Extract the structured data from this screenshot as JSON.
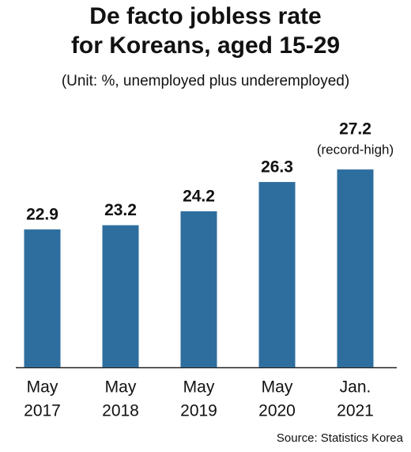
{
  "chart_data": {
    "type": "bar",
    "title": [
      "De facto jobless rate",
      "for Koreans, aged 15-29"
    ],
    "subtitle": "(Unit: %, unemployed plus underemployed)",
    "categories": [
      [
        "May",
        "2017"
      ],
      [
        "May",
        "2018"
      ],
      [
        "May",
        "2019"
      ],
      [
        "May",
        "2020"
      ],
      [
        "Jan.",
        "2021"
      ]
    ],
    "values": [
      22.9,
      23.2,
      24.2,
      26.3,
      27.2
    ],
    "color": "#2e6e9e",
    "ylim": [
      13,
      28
    ],
    "annotation": "(record-high)",
    "source": "Source: Statistics Korea"
  }
}
